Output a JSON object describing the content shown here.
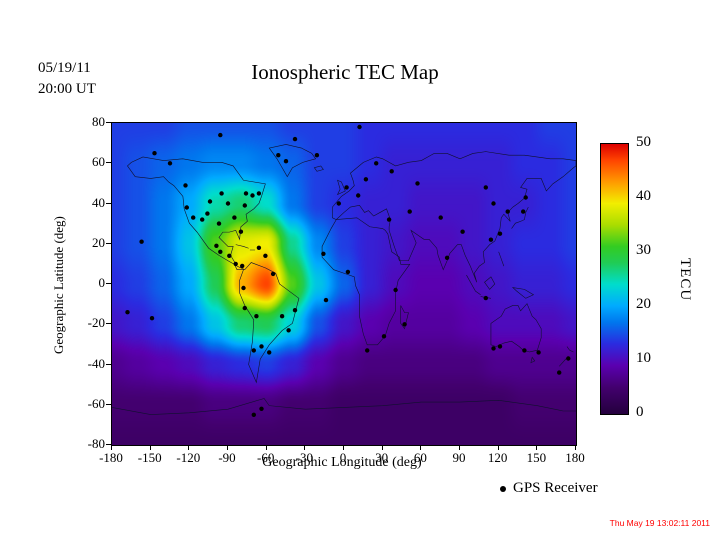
{
  "header": {
    "date_line1": "05/19/11",
    "date_line2": "20:00 UT"
  },
  "chart_data": {
    "type": "heatmap",
    "title": "Ionospheric TEC Map",
    "map_timestamp": "05/19/11 20:00 UT",
    "xlabel": "Geographic Longitude (deg)",
    "ylabel": "Geographic Latitude (deg)",
    "colorbar_label": "TECU",
    "xlim": [
      -180,
      180
    ],
    "ylim": [
      -80,
      80
    ],
    "x_ticks": [
      -180,
      -150,
      -120,
      -90,
      -60,
      -30,
      0,
      30,
      60,
      90,
      120,
      150,
      180
    ],
    "y_ticks": [
      80,
      60,
      40,
      20,
      0,
      -20,
      -40,
      -60,
      -80
    ],
    "colorbar_ticks": [
      50,
      40,
      30,
      20,
      10,
      0
    ],
    "colorbar_range": [
      0,
      50
    ],
    "colormap_stops": [
      {
        "value": 0,
        "color": "#24003d"
      },
      {
        "value": 5,
        "color": "#43006f"
      },
      {
        "value": 9,
        "color": "#5a00b0"
      },
      {
        "value": 13,
        "color": "#2b2be0"
      },
      {
        "value": 17,
        "color": "#0077ee"
      },
      {
        "value": 20,
        "color": "#00aaff"
      },
      {
        "value": 24,
        "color": "#00ddcc"
      },
      {
        "value": 28,
        "color": "#20cc55"
      },
      {
        "value": 31,
        "color": "#33cc22"
      },
      {
        "value": 35,
        "color": "#aadd00"
      },
      {
        "value": 39,
        "color": "#f2ee00"
      },
      {
        "value": 43,
        "color": "#ff9900"
      },
      {
        "value": 47,
        "color": "#ff4400"
      },
      {
        "value": 50,
        "color": "#dd0000"
      }
    ],
    "grid": {
      "lon_start": -180,
      "lon_step": 20,
      "lat_start": 80,
      "lat_step": -20,
      "units": "TECU",
      "values": [
        [
          14,
          14,
          14,
          15,
          15,
          15,
          15,
          14,
          14,
          14,
          13,
          13,
          13,
          13,
          13,
          13,
          13,
          14,
          14
        ],
        [
          14,
          15,
          16,
          17,
          18,
          18,
          17,
          16,
          14,
          14,
          13,
          12,
          12,
          12,
          12,
          12,
          13,
          13,
          14
        ],
        [
          14,
          15,
          17,
          20,
          25,
          27,
          24,
          17,
          14,
          13,
          12,
          12,
          11,
          11,
          11,
          12,
          12,
          13,
          14
        ],
        [
          14,
          15,
          17,
          22,
          32,
          38,
          39,
          26,
          18,
          14,
          12,
          11,
          10,
          10,
          11,
          12,
          13,
          13,
          14
        ],
        [
          13,
          14,
          16,
          20,
          28,
          42,
          47,
          32,
          22,
          16,
          12,
          10,
          9,
          9,
          10,
          11,
          12,
          12,
          13
        ],
        [
          11,
          12,
          14,
          17,
          22,
          27,
          28,
          23,
          15,
          11,
          9,
          8,
          8,
          8,
          9,
          10,
          10,
          10,
          11
        ],
        [
          7,
          8,
          9,
          10,
          12,
          13,
          14,
          12,
          9,
          7,
          6,
          6,
          6,
          6,
          6,
          7,
          7,
          7,
          7
        ],
        [
          5,
          5,
          5,
          5,
          6,
          6,
          6,
          5,
          5,
          4,
          4,
          4,
          4,
          4,
          4,
          4,
          5,
          5,
          5
        ],
        [
          4,
          4,
          4,
          4,
          4,
          4,
          4,
          4,
          4,
          4,
          4,
          4,
          4,
          4,
          4,
          4,
          4,
          4,
          4
        ]
      ]
    },
    "gps_receivers": {
      "label": "GPS Receiver",
      "lonlat": [
        [
          -147,
          65
        ],
        [
          -135,
          60
        ],
        [
          -123,
          49
        ],
        [
          -122,
          38
        ],
        [
          -117,
          33
        ],
        [
          -110,
          32
        ],
        [
          -106,
          35
        ],
        [
          -104,
          41
        ],
        [
          -97,
          30
        ],
        [
          -95,
          45
        ],
        [
          -90,
          40
        ],
        [
          -85,
          33
        ],
        [
          -80,
          26
        ],
        [
          -77,
          39
        ],
        [
          -71,
          44
        ],
        [
          -76,
          45
        ],
        [
          -66,
          45
        ],
        [
          -99,
          19
        ],
        [
          -96,
          16
        ],
        [
          -89,
          14
        ],
        [
          -84,
          10
        ],
        [
          -79,
          9
        ],
        [
          -66,
          18
        ],
        [
          -61,
          14
        ],
        [
          -78,
          -2
        ],
        [
          -77,
          -12
        ],
        [
          -70,
          -33
        ],
        [
          -68,
          -16
        ],
        [
          -64,
          -31
        ],
        [
          -58,
          -34
        ],
        [
          -48,
          -16
        ],
        [
          -43,
          -23
        ],
        [
          -38,
          -13
        ],
        [
          -55,
          5
        ],
        [
          -51,
          64
        ],
        [
          -45,
          61
        ],
        [
          -38,
          72
        ],
        [
          -96,
          74
        ],
        [
          -21,
          64
        ],
        [
          12,
          78
        ],
        [
          -4,
          40
        ],
        [
          2,
          48
        ],
        [
          11,
          44
        ],
        [
          17,
          52
        ],
        [
          25,
          60
        ],
        [
          37,
          56
        ],
        [
          -16,
          15
        ],
        [
          3,
          6
        ],
        [
          31,
          -26
        ],
        [
          18,
          -33
        ],
        [
          40,
          -3
        ],
        [
          47,
          -20
        ],
        [
          -14,
          -8
        ],
        [
          35,
          32
        ],
        [
          51,
          36
        ],
        [
          75,
          33
        ],
        [
          80,
          13
        ],
        [
          92,
          26
        ],
        [
          57,
          50
        ],
        [
          110,
          48
        ],
        [
          116,
          40
        ],
        [
          114,
          22
        ],
        [
          121,
          25
        ],
        [
          127,
          36
        ],
        [
          139,
          36
        ],
        [
          141,
          43
        ],
        [
          110,
          -7
        ],
        [
          116,
          -32
        ],
        [
          121,
          -31
        ],
        [
          140,
          -33
        ],
        [
          151,
          -34
        ],
        [
          167,
          -44
        ],
        [
          174,
          -37
        ],
        [
          -157,
          21
        ],
        [
          -168,
          -14
        ],
        [
          -149,
          -17
        ],
        [
          -70,
          -65
        ],
        [
          -64,
          -62
        ]
      ]
    },
    "footer_timestamp": {
      "text": "Thu May 19 13:02:11 2011",
      "color": "#ff0000"
    }
  }
}
